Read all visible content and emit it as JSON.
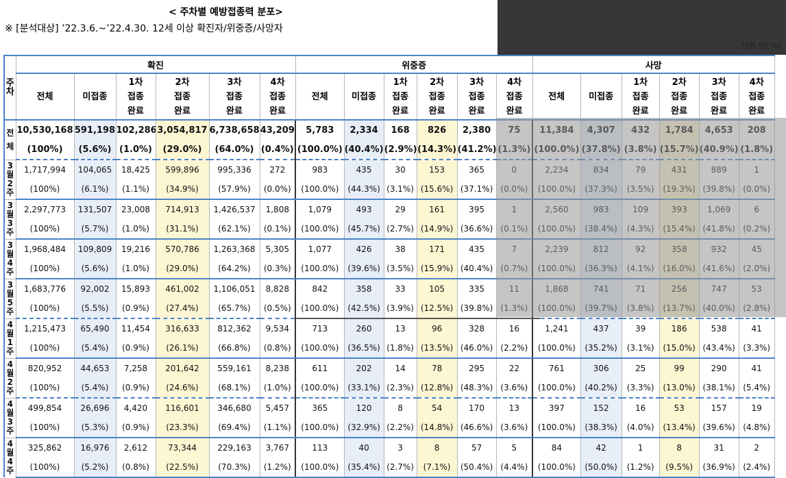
{
  "title": "< 주차별 예방접종력 분포>",
  "subtitle": "※ [분석대상] ’22.3.6.~’22.4.30. 12세 이상 확진자/위중증/사망자",
  "unit": "단위:명(%)",
  "colors": {
    "header_rule": "#4a83c6",
    "unvaccinated_bg": "#e7eef8",
    "dose2_bg": "#fdf6d3",
    "overlay_grey": "#969696",
    "dark_panel": "#373737"
  },
  "headers": {
    "week": "주차",
    "groups": [
      "확진",
      "위중증",
      "사망"
    ],
    "sub": [
      [
        "전체"
      ],
      [
        "미접종"
      ],
      [
        "1차",
        "접종",
        "완료"
      ],
      [
        "2차",
        "접종",
        "완료"
      ],
      [
        "3차",
        "접종",
        "완료"
      ],
      [
        "4차",
        "접종",
        "완료"
      ]
    ]
  },
  "rows": [
    {
      "week": [
        "전",
        "체"
      ],
      "total": true,
      "counts": [
        "10,530,168",
        "591,198",
        "102,286",
        "3,054,817",
        "6,738,658",
        "43,209",
        "5,783",
        "2,334",
        "168",
        "826",
        "2,380",
        "75",
        "11,384",
        "4,307",
        "432",
        "1,784",
        "4,653",
        "208"
      ],
      "pcts": [
        "(100%)",
        "(5.6%)",
        "(1.0%)",
        "(29.0%)",
        "(64.0%)",
        "(0.4%)",
        "(100.0%)",
        "(40.4%)",
        "(2.9%)",
        "(14.3%)",
        "(41.2%)",
        "(1.3%)",
        "(100.0%)",
        "(37.8%)",
        "(3.8%)",
        "(15.7%)",
        "(40.9%)",
        "(1.8%)"
      ]
    },
    {
      "week": [
        "3",
        "월",
        "2",
        "주"
      ],
      "counts": [
        "1,717,994",
        "104,065",
        "18,425",
        "599,896",
        "995,336",
        "272",
        "983",
        "435",
        "30",
        "153",
        "365",
        "0",
        "2,234",
        "834",
        "79",
        "431",
        "889",
        "1"
      ],
      "pcts": [
        "(100%)",
        "(6.1%)",
        "(1.1%)",
        "(34.9%)",
        "(57.9%)",
        "(0.0%)",
        "(100.0%)",
        "(44.3%)",
        "(3.1%)",
        "(15.6%)",
        "(37.1%)",
        "(0.0%)",
        "(100.0%)",
        "(37.3%)",
        "(3.5%)",
        "(19.3%)",
        "(39.8%)",
        "(0.0%)"
      ]
    },
    {
      "week": [
        "3",
        "월",
        "3",
        "주"
      ],
      "counts": [
        "2,297,773",
        "131,507",
        "23,008",
        "714,913",
        "1,426,537",
        "1,808",
        "1,079",
        "493",
        "29",
        "161",
        "395",
        "1",
        "2,560",
        "983",
        "109",
        "393",
        "1,069",
        "6"
      ],
      "pcts": [
        "(100%)",
        "(5.7%)",
        "(1.0%)",
        "(31.1%)",
        "(62.1%)",
        "(0.1%)",
        "(100.0%)",
        "(45.7%)",
        "(2.7%)",
        "(14.9%)",
        "(36.6%)",
        "(0.1%)",
        "(100.0%)",
        "(38.4%)",
        "(4.3%)",
        "(15.4%)",
        "(41.8%)",
        "(0.2%)"
      ]
    },
    {
      "week": [
        "3",
        "월",
        "4",
        "주"
      ],
      "counts": [
        "1,968,484",
        "109,809",
        "19,216",
        "570,786",
        "1,263,368",
        "5,305",
        "1,077",
        "426",
        "38",
        "171",
        "435",
        "7",
        "2,239",
        "812",
        "92",
        "358",
        "932",
        "45"
      ],
      "pcts": [
        "(100%)",
        "(5.6%)",
        "(1.0%)",
        "(29.0%)",
        "(64.2%)",
        "(0.3%)",
        "(100.0%)",
        "(39.6%)",
        "(3.5%)",
        "(15.9%)",
        "(40.4%)",
        "(0.7%)",
        "(100.0%)",
        "(36.3%)",
        "(4.1%)",
        "(16.0%)",
        "(41.6%)",
        "(2.0%)"
      ]
    },
    {
      "week": [
        "3",
        "월",
        "5",
        "주"
      ],
      "counts": [
        "1,683,776",
        "92,002",
        "15,893",
        "461,002",
        "1,106,051",
        "8,828",
        "842",
        "358",
        "33",
        "105",
        "335",
        "11",
        "1,868",
        "741",
        "71",
        "256",
        "747",
        "53"
      ],
      "pcts": [
        "(100%)",
        "(5.5%)",
        "(0.9%)",
        "(27.4%)",
        "(65.7%)",
        "(0.5%)",
        "(100.0%)",
        "(42.5%)",
        "(3.9%)",
        "(12.5%)",
        "(39.8%)",
        "(1.3%)",
        "(100.0%)",
        "(39.7%)",
        "(3.8%)",
        "(13.7%)",
        "(40.0%)",
        "(2.8%)"
      ]
    },
    {
      "week": [
        "4",
        "월",
        "1",
        "주"
      ],
      "counts": [
        "1,215,473",
        "65,490",
        "11,454",
        "316,633",
        "812,362",
        "9,534",
        "713",
        "260",
        "13",
        "96",
        "328",
        "16",
        "1,241",
        "437",
        "39",
        "186",
        "538",
        "41"
      ],
      "pcts": [
        "(100%)",
        "(5.4%)",
        "(0.9%)",
        "(26.1%)",
        "(66.8%)",
        "(0.8%)",
        "(100.0%)",
        "(36.5%)",
        "(1.8%)",
        "(13.5%)",
        "(46.0%)",
        "(2.2%)",
        "(100.0%)",
        "(35.2%)",
        "(3.1%)",
        "(15.0%)",
        "(43.4%)",
        "(3.3%)"
      ]
    },
    {
      "week": [
        "4",
        "월",
        "2",
        "주"
      ],
      "counts": [
        "820,952",
        "44,653",
        "7,258",
        "201,642",
        "559,161",
        "8,238",
        "611",
        "202",
        "14",
        "78",
        "295",
        "22",
        "761",
        "306",
        "25",
        "99",
        "290",
        "41"
      ],
      "pcts": [
        "(100%)",
        "(5.4%)",
        "(0.9%)",
        "(24.6%)",
        "(68.1%)",
        "(1.0%)",
        "(100.0%)",
        "(33.1%)",
        "(2.3%)",
        "(12.8%)",
        "(48.3%)",
        "(3.6%)",
        "(100.0%)",
        "(40.2%)",
        "(3.3%)",
        "(13.0%)",
        "(38.1%)",
        "(5.4%)"
      ]
    },
    {
      "week": [
        "4",
        "월",
        "3",
        "주"
      ],
      "counts": [
        "499,854",
        "26,696",
        "4,420",
        "116,601",
        "346,680",
        "5,457",
        "365",
        "120",
        "8",
        "54",
        "170",
        "13",
        "397",
        "152",
        "16",
        "53",
        "157",
        "19"
      ],
      "pcts": [
        "(100%)",
        "(5.3%)",
        "(0.9%)",
        "(23.3%)",
        "(69.4%)",
        "(1.1%)",
        "(100.0%)",
        "(32.9%)",
        "(2.2%)",
        "(14.8%)",
        "(46.6%)",
        "(3.6%)",
        "(100.0%)",
        "(38.3%)",
        "(4.0%)",
        "(13.4%)",
        "(39.6%)",
        "(4.8%)"
      ]
    },
    {
      "week": [
        "4",
        "월",
        "4",
        "주"
      ],
      "counts": [
        "325,862",
        "16,976",
        "2,612",
        "73,344",
        "229,163",
        "3,767",
        "113",
        "40",
        "3",
        "8",
        "57",
        "5",
        "84",
        "42",
        "1",
        "8",
        "31",
        "2"
      ],
      "pcts": [
        "(100%)",
        "(5.2%)",
        "(0.8%)",
        "(22.5%)",
        "(70.3%)",
        "(1.2%)",
        "(100.0%)",
        "(35.4%)",
        "(2.7%)",
        "(7.1%)",
        "(50.4%)",
        "(4.4%)",
        "(100.0%)",
        "(50.0%)",
        "(1.2%)",
        "(9.5%)",
        "(36.9%)",
        "(2.4%)"
      ]
    }
  ]
}
